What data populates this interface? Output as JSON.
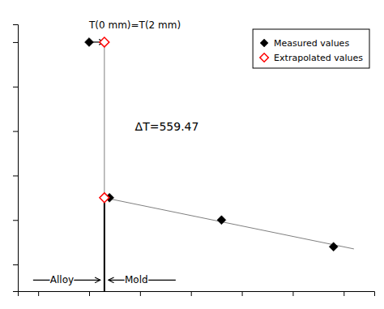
{
  "chart_data": {
    "type": "scatter",
    "xlim": [
      -7,
      28
    ],
    "ylim": [
      -12,
      108
    ],
    "xticks": [
      -5,
      0,
      5,
      10,
      15,
      20,
      25
    ],
    "yticks": [
      0,
      20,
      40,
      60,
      80,
      100
    ],
    "tick_labels": false,
    "grid": false,
    "legend": "upper right",
    "series": [
      {
        "name": "Measured values",
        "color": "black",
        "marker": "diamond",
        "x": [
          0,
          2,
          13,
          24
        ],
        "values": [
          100,
          30,
          20,
          8
        ]
      },
      {
        "name": "Extrapolated values",
        "color": "red",
        "marker": "diamond",
        "x": [
          1.5,
          1.5
        ],
        "values": [
          100,
          30
        ]
      }
    ],
    "lines": [
      {
        "color": "gray",
        "x": [
          1.5,
          26
        ],
        "y": [
          30,
          7
        ]
      },
      {
        "color": "gray",
        "x": [
          1.5,
          1.5
        ],
        "y": [
          30,
          100
        ]
      },
      {
        "color": "black",
        "x": [
          1.5,
          1.5
        ],
        "y": [
          -12,
          30
        ]
      }
    ],
    "arrows": [
      {
        "from": [
          0,
          100
        ],
        "to": [
          1.5,
          100
        ]
      },
      {
        "from": [
          1.5,
          30
        ],
        "to": [
          2,
          30
        ]
      },
      {
        "from": [
          -5.5,
          -7
        ],
        "to": [
          1.1,
          -7
        ]
      },
      {
        "from": [
          8.5,
          -7
        ],
        "to": [
          1.9,
          -7
        ]
      }
    ],
    "annotations": [
      {
        "text": "ΔT=559.47",
        "x": 4.5,
        "y": 62,
        "align": "left"
      },
      {
        "text": "T(0 mm)=T(2 mm)",
        "x": 0,
        "y": 105,
        "align": "left"
      },
      {
        "text": "Alloy",
        "x": -1.5,
        "y": -7,
        "align": "right"
      },
      {
        "text": "Mold",
        "x": 3.5,
        "y": -7,
        "align": "left"
      }
    ]
  }
}
